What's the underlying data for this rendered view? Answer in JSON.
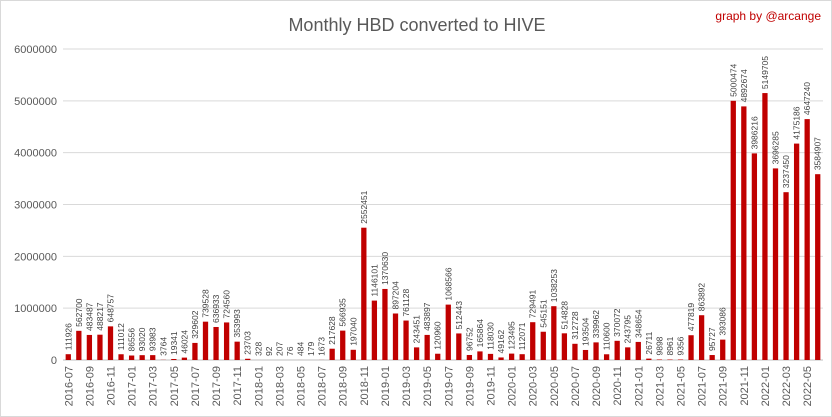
{
  "chart_data": {
    "type": "bar",
    "title": "Monthly HBD converted to  HIVE",
    "watermark": "graph by @arcange",
    "bar_color": "#c00000",
    "grid": true,
    "legend": "none",
    "ylim": [
      0,
      6000000
    ],
    "y_ticks": [
      "0",
      "1000000",
      "2000000",
      "3000000",
      "4000000",
      "5000000",
      "6000000"
    ],
    "categories": [
      "2016-07",
      "2016-08",
      "2016-09",
      "2016-10",
      "2016-11",
      "2016-12",
      "2017-01",
      "2017-02",
      "2017-03",
      "2017-04",
      "2017-05",
      "2017-06",
      "2017-07",
      "2017-08",
      "2017-09",
      "2017-10",
      "2017-11",
      "2017-12",
      "2018-01",
      "2018-02",
      "2018-03",
      "2018-04",
      "2018-05",
      "2018-06",
      "2018-07",
      "2018-08",
      "2018-09",
      "2018-10",
      "2018-11",
      "2018-12",
      "2019-01",
      "2019-02",
      "2019-03",
      "2019-04",
      "2019-05",
      "2019-06",
      "2019-07",
      "2019-08",
      "2019-09",
      "2019-10",
      "2019-11",
      "2019-12",
      "2020-01",
      "2020-02",
      "2020-03",
      "2020-04",
      "2020-05",
      "2020-06",
      "2020-07",
      "2020-08",
      "2020-09",
      "2020-10",
      "2020-11",
      "2020-12",
      "2021-01",
      "2021-02",
      "2021-03",
      "2021-04",
      "2021-05",
      "2021-06",
      "2021-07",
      "2021-08",
      "2021-09",
      "2021-10",
      "2021-11",
      "2021-12",
      "2022-01",
      "2022-02",
      "2022-03",
      "2022-04",
      "2022-05",
      "2022-06"
    ],
    "values": [
      111926,
      562700,
      483487,
      488217,
      648757,
      111012,
      86556,
      93020,
      93983,
      3764,
      19341,
      46024,
      329602,
      739528,
      636933,
      724560,
      353993,
      23703,
      328,
      92,
      207,
      76,
      484,
      179,
      1673,
      217628,
      566935,
      197040,
      2552451,
      1146101,
      1370630,
      897204,
      761128,
      243451,
      483897,
      120960,
      1068566,
      512443,
      96752,
      165864,
      118030,
      49162,
      123495,
      112071,
      729491,
      545151,
      1038253,
      514828,
      312728,
      193504,
      339962,
      110600,
      370072,
      243795,
      348654,
      26711,
      9898,
      8961,
      9356,
      477819,
      863892,
      95727,
      393086,
      5000474,
      4892674,
      3986216,
      5149705,
      3696285,
      3237450,
      4175186,
      4647240,
      3584907
    ],
    "data_labels": [
      "111926",
      "562700",
      "483487",
      "488217",
      "648757",
      "111012",
      "86556",
      "93020",
      "93983",
      "3764",
      "19341",
      "46024",
      "329602",
      "739528",
      "636933",
      "724560",
      "353993",
      "23703",
      "328",
      "92",
      "207",
      "76",
      "484",
      "179",
      "1673",
      "217628",
      "566935",
      "197040",
      "2552451",
      "1146101",
      "1370630",
      "897204",
      "761128",
      "243451",
      "483897",
      "120960",
      "1068566",
      "512443",
      "96752",
      "165864",
      "118030",
      "49162",
      "123495",
      "112071",
      "729491",
      "545151",
      "1038253",
      "514828",
      "312728",
      "193504",
      "339962",
      "110600",
      "370072",
      "243795",
      "348654",
      "26711",
      "9898",
      "8961",
      "9356",
      "477819",
      "863892",
      "95727",
      "393086",
      "5000474",
      "4892674",
      "3986216",
      "5149705",
      "3696285",
      "3237450",
      "4175186",
      "4647240",
      "3584907"
    ],
    "x_tick_labels_shown": [
      "2016-07",
      "2016-09",
      "2016-11",
      "2017-01",
      "2017-03",
      "2017-05",
      "2017-07",
      "2017-09",
      "2017-11",
      "2018-01",
      "2018-03",
      "2018-05",
      "2018-07",
      "2018-09",
      "2018-11",
      "2019-01",
      "2019-03",
      "2019-05",
      "2019-07",
      "2019-09",
      "2019-11",
      "2020-01",
      "2020-03",
      "2020-05",
      "2020-07",
      "2020-09",
      "2020-11",
      "2021-01",
      "2021-03",
      "2021-05",
      "2021-07",
      "2021-09",
      "2021-11",
      "2022-01",
      "2022-03",
      "2022-05"
    ]
  }
}
